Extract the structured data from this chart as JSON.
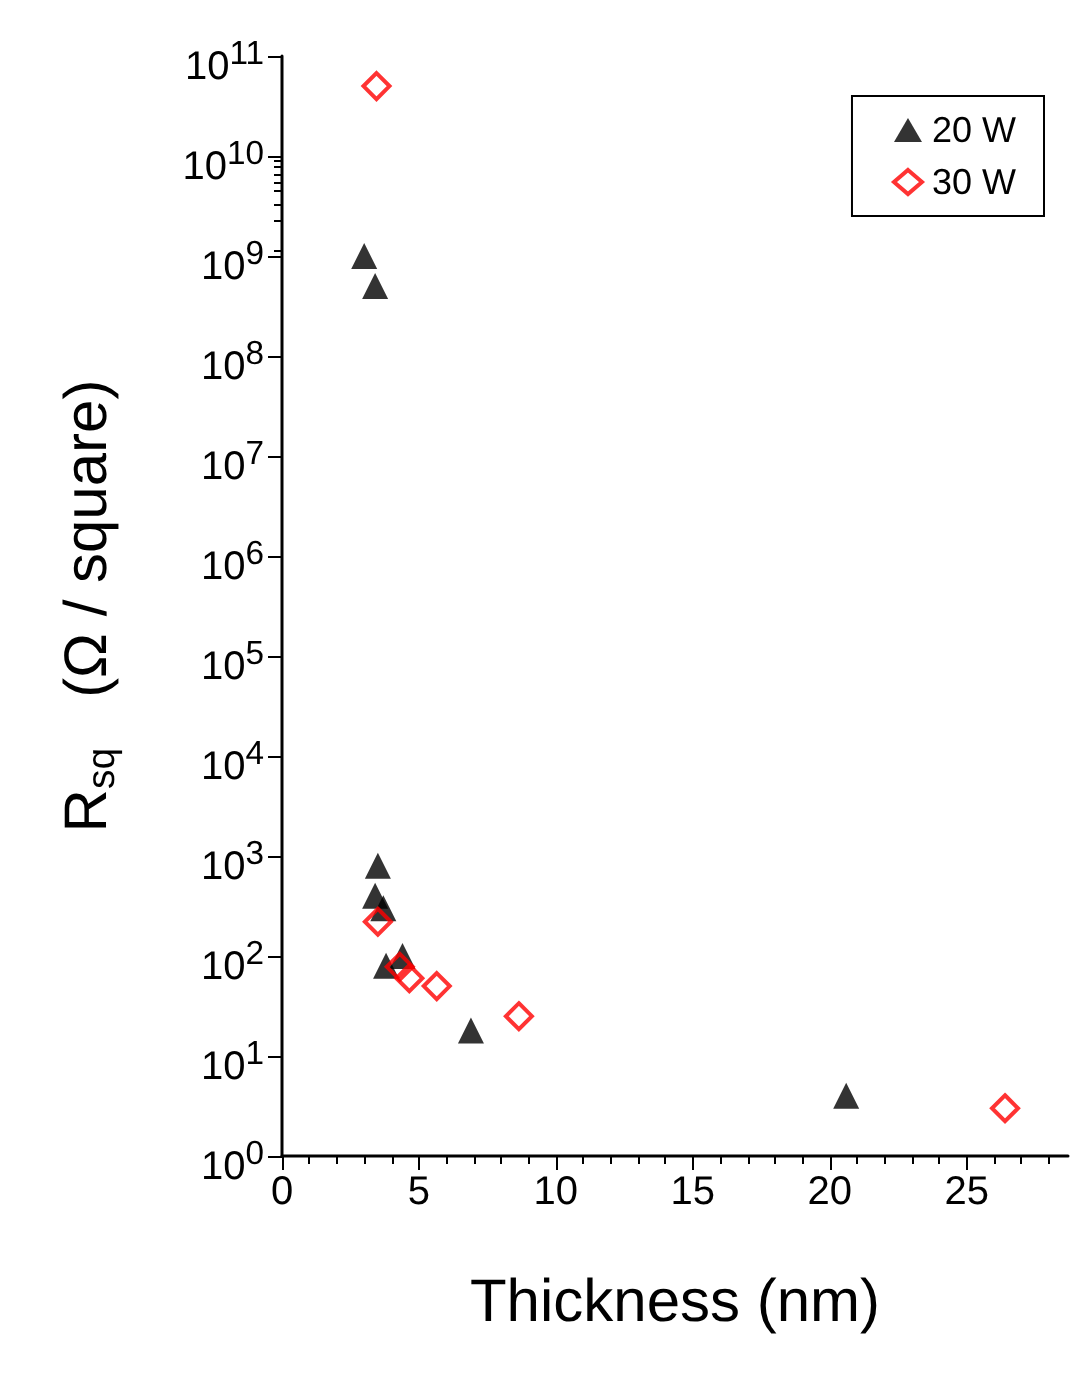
{
  "chart_data": {
    "type": "scatter",
    "xlabel": "Thickness (nm)",
    "ylabel": "R$_{sq}$   (Ω / square)",
    "log": "y",
    "xlim": [
      0,
      28.7
    ],
    "xticks": [
      0,
      5,
      10,
      15,
      20,
      25
    ],
    "ylim": [
      1,
      100000000000
    ],
    "yticks": [
      {
        "value": 1,
        "label": "10$^{0}$"
      },
      {
        "value": 10,
        "label": "10$^{1}$"
      },
      {
        "value": 100,
        "label": "10$^{2}$"
      },
      {
        "value": 1000,
        "label": "10$^{3}$"
      },
      {
        "value": 10000,
        "label": "10$^{4}$"
      },
      {
        "value": 100000,
        "label": "10$^{5}$"
      },
      {
        "value": 1000000,
        "label": "10$^{6}$"
      },
      {
        "value": 10000000,
        "label": "10$^{7}$"
      },
      {
        "value": 100000000,
        "label": "10$^{8}$"
      },
      {
        "value": 1000000000,
        "label": "10$^{9}$"
      },
      {
        "value": 10000000000,
        "label": "10$^{10}$"
      },
      {
        "value": 100000000000,
        "label": "10$^{11}$"
      }
    ],
    "grid": false,
    "legend": "top right",
    "series": [
      {
        "name": "20 W",
        "color": "#000000",
        "marker": "triangle",
        "x": [
          3.0,
          3.4,
          3.5,
          3.4,
          3.7,
          3.8,
          4.4,
          6.9,
          20.6
        ],
        "values": [
          1000000000,
          500000000,
          800,
          400,
          300,
          80,
          100,
          18,
          4
        ]
      },
      {
        "name": "30 W",
        "color": "#ff0000",
        "marker": "diamond",
        "x": [
          3.45,
          3.5,
          4.3,
          4.65,
          5.65,
          8.65,
          26.4
        ],
        "values": [
          50000000000,
          220,
          78,
          60,
          50,
          25,
          3
        ]
      }
    ]
  }
}
